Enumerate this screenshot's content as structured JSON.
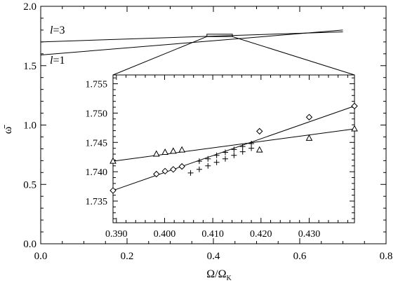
{
  "chart_data": [
    {
      "type": "line",
      "title": "",
      "xlabel": "Ω/Ω",
      "xlabel_sub": "K",
      "ylabel": "ω̄",
      "xlim": [
        0.0,
        0.8
      ],
      "ylim": [
        0.0,
        2.0
      ],
      "x_ticks": [
        "0.0",
        "0.2",
        "0.4",
        "0.6",
        "0.8"
      ],
      "y_ticks": [
        "0.0",
        "0.5",
        "1.0",
        "1.5",
        "2.0"
      ],
      "grid": false,
      "annotations": [
        {
          "text": "l=3",
          "italic_part": "l",
          "rest": "=3"
        },
        {
          "text": "l=1",
          "italic_part": "l",
          "rest": "=1"
        }
      ],
      "zoom_box": {
        "x": [
          0.385,
          0.444
        ],
        "y": [
          1.745,
          1.765
        ]
      },
      "series": [
        {
          "x": [
            0.0,
            0.7
          ],
          "y": [
            1.7,
            1.785
          ]
        },
        {
          "x": [
            0.0,
            0.7
          ],
          "y": [
            1.59,
            1.8
          ]
        }
      ]
    },
    {
      "type": "line",
      "title": "",
      "xlabel": "",
      "ylabel": "",
      "xlim": [
        0.3893,
        0.4394
      ],
      "ylim": [
        1.7313,
        1.7565
      ],
      "x_ticks": [
        "0.390",
        "0.400",
        "0.410",
        "0.420",
        "0.430"
      ],
      "y_ticks": [
        "1.735",
        "1.740",
        "1.745",
        "1.750",
        "1.755"
      ],
      "grid": false,
      "series": [
        {
          "line": {
            "x": [
              0.3893,
              0.4394
            ],
            "y": [
              1.7368,
              1.7512
            ]
          },
          "markers": [
            {
              "symbol": "diamond",
              "x": [
                0.3893,
                0.3983,
                0.4001,
                0.4018,
                0.4036,
                0.4197,
                0.43,
                0.4394
              ],
              "y": [
                1.7368,
                1.7396,
                1.7401,
                1.7404,
                1.7409,
                1.7469,
                1.7493,
                1.7512
              ]
            },
            {
              "symbol": "plus",
              "x": [
                0.4072,
                0.409,
                0.4108,
                0.4126,
                0.4144,
                0.4162,
                0.418
              ],
              "y": [
                1.7418,
                1.7422,
                1.7428,
                1.7433,
                1.7438,
                1.7443,
                1.7448
              ]
            }
          ]
        },
        {
          "line": {
            "x": [
              0.3893,
              0.4394
            ],
            "y": [
              1.7418,
              1.7473
            ]
          },
          "markers": [
            {
              "symbol": "triangle",
              "x": [
                0.3893,
                0.3983,
                0.4001,
                0.4018,
                0.4036,
                0.4197,
                0.43,
                0.4394
              ],
              "y": [
                1.7418,
                1.743,
                1.7433,
                1.7435,
                1.7437,
                1.7437,
                1.7457,
                1.7473
              ]
            },
            {
              "symbol": "plus",
              "x": [
                0.4054,
                0.4072,
                0.409,
                0.4108,
                0.4126,
                0.4144,
                0.4162,
                0.418
              ],
              "y": [
                1.7398,
                1.7404,
                1.741,
                1.7416,
                1.7422,
                1.7428,
                1.7434,
                1.744
              ]
            }
          ]
        }
      ]
    }
  ]
}
